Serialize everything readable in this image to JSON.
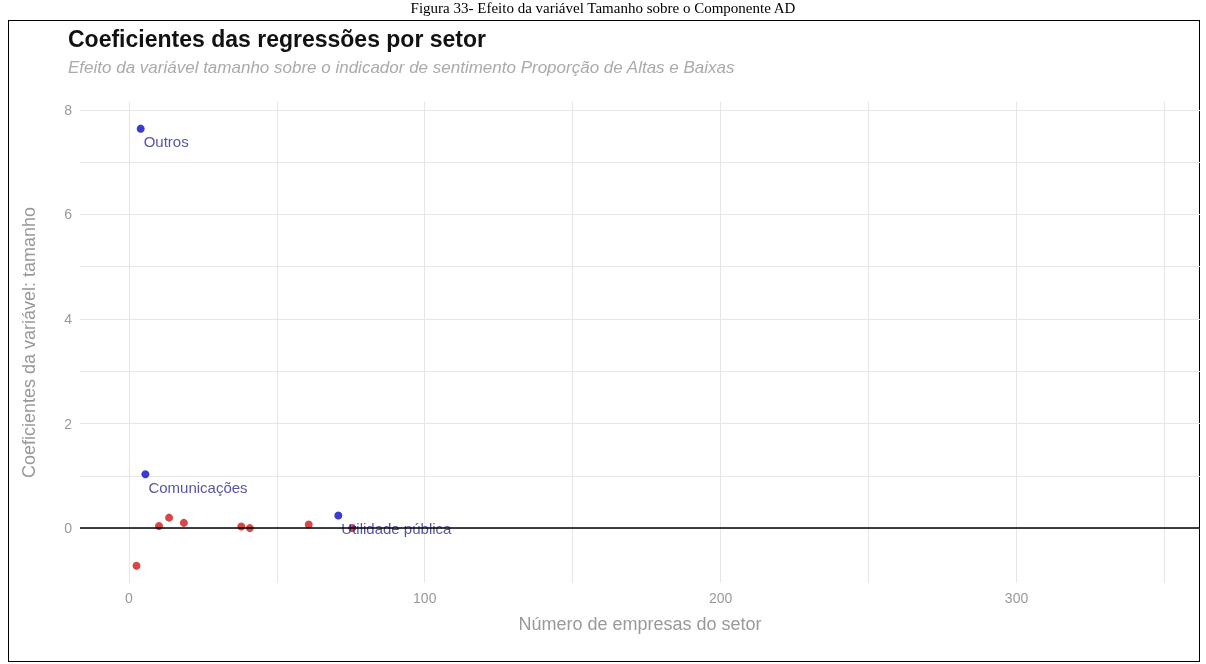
{
  "chart_data": {
    "type": "scatter",
    "title": "Coeficientes das regressões por setor",
    "subtitle": "Efeito da variável tamanho sobre o indicador de sentimento Proporção de Altas e Baixas",
    "xlabel": "Número de empresas do setor",
    "ylabel": "Coeficientes da variável: tamanho",
    "annotations": [
      "Figura 33- Efeito da variável Tamanho sobre o Componente AD"
    ],
    "series": [
      {
        "color": "#cc1a1a",
        "x": [
          2.6,
          10.2,
          13.6,
          18.6,
          38,
          40.9,
          60.8,
          75.5
        ],
        "values": [
          -0.72,
          0.04,
          0.2,
          0.1,
          0.03,
          0.0,
          0.07,
          0.0
        ]
      },
      {
        "color": "#0a0ac8",
        "x": [
          4,
          5.6,
          70.8
        ],
        "values": [
          7.64,
          1.03,
          0.24
        ],
        "value_labels": [
          "Outros",
          "Comunicações",
          "Utilidade pública"
        ]
      }
    ],
    "xlim": [
      -16.5,
      362
    ],
    "xticks": [
      0,
      {
        "value": 50,
        "label": null
      },
      100,
      {
        "value": 150,
        "label": null
      },
      200,
      {
        "value": 250,
        "label": null
      },
      300,
      {
        "value": 350,
        "label": null
      }
    ],
    "ylim": [
      -1.05,
      8.15
    ],
    "yticks": [
      0,
      {
        "value": 1,
        "label": null
      },
      2,
      {
        "value": 3,
        "label": null
      },
      4,
      {
        "value": 5,
        "label": null
      },
      6,
      {
        "value": 7,
        "label": null
      },
      8
    ],
    "ref_lines": [
      {
        "axis": "y",
        "value": 0,
        "color": "#000000"
      }
    ],
    "grid": true,
    "marker": "circle"
  }
}
